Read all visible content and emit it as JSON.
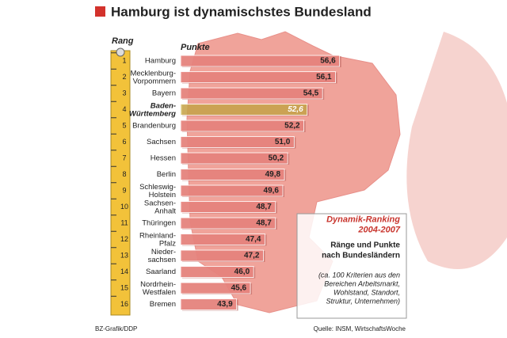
{
  "chart_data": {
    "type": "bar",
    "title": "Hamburg ist dynamischstes Bundesland",
    "rank_label": "Rang",
    "value_label": "Punkte",
    "ranks": [
      1,
      2,
      3,
      4,
      5,
      6,
      7,
      8,
      9,
      10,
      11,
      12,
      13,
      14,
      15,
      16
    ],
    "categories": [
      "Hamburg",
      "Mecklenburg-Vorpommern",
      "Bayern",
      "Baden-Württemberg",
      "Brandenburg",
      "Sachsen",
      "Hessen",
      "Berlin",
      "Schleswig-Holstein",
      "Sachsen-Anhalt",
      "Thüringen",
      "Rheinland-Pfalz",
      "Nieder-sachsen",
      "Saarland",
      "Nordrhein-Westfalen",
      "Bremen"
    ],
    "values": [
      56.6,
      56.1,
      54.5,
      52.6,
      52.2,
      51.0,
      50.2,
      49.8,
      49.6,
      48.7,
      48.7,
      47.4,
      47.2,
      46.0,
      45.6,
      43.9
    ],
    "value_labels": [
      "56,6",
      "56,1",
      "54,5",
      "52,6",
      "52,2",
      "51,0",
      "50,2",
      "49,8",
      "49,6",
      "48,7",
      "48,7",
      "47,4",
      "47,2",
      "46,0",
      "45,6",
      "43,9"
    ],
    "color": "#e8857f",
    "highlight_color": "#c9b04a",
    "highlight_index": 3,
    "xlim": [
      37,
      58
    ],
    "box": {
      "title": "Dynamik-Ranking 2004-2007",
      "subtitle": "Ränge und Punkte nach Bundesländern",
      "note": "(ca. 100 Kriterien aus den Bereichen Arbeitsmarkt, Wohlstand, Standort, Struktur, Unternehmen)"
    },
    "credit": "BZ-Grafik/DDP",
    "source": "Quelle: INSM, WirtschaftsWoche"
  }
}
